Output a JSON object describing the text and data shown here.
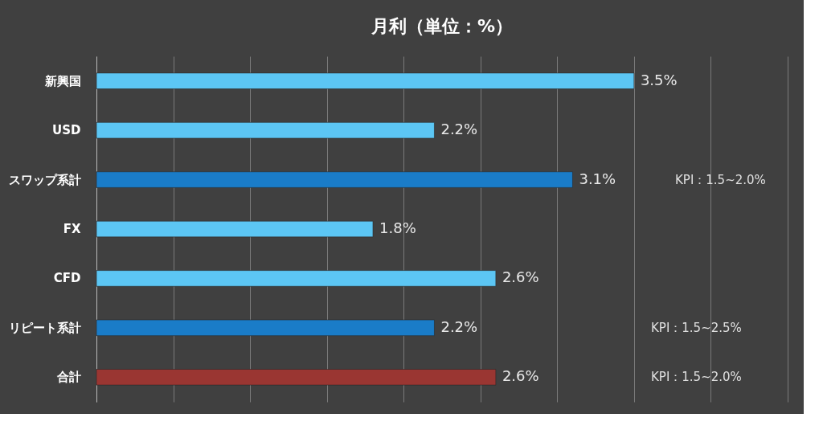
{
  "chart_data": {
    "type": "bar",
    "orientation": "horizontal",
    "title": "月利（単位：%）",
    "categories": [
      "新興国",
      "USD",
      "スワップ系計",
      "FX",
      "CFD",
      "リピート系計",
      "合計"
    ],
    "values": [
      3.5,
      2.2,
      3.1,
      1.8,
      2.6,
      2.2,
      2.6
    ],
    "colors": [
      "#5cc6f4",
      "#5cc6f4",
      "#1a7cc8",
      "#5cc6f4",
      "#5cc6f4",
      "#1a7cc8",
      "#9a3632"
    ],
    "value_labels": [
      "3.5%",
      "2.2%",
      "3.1%",
      "1.8%",
      "2.6%",
      "2.2%",
      "2.6%"
    ],
    "xlim": [
      0,
      4.5
    ],
    "xticks": [
      {
        "value": 0,
        "label": null
      },
      {
        "value": 0.5,
        "label": null
      },
      {
        "value": 1,
        "label": null
      },
      {
        "value": 1.5,
        "label": null
      },
      {
        "value": 2,
        "label": null
      },
      {
        "value": 2.5,
        "label": null
      },
      {
        "value": 3,
        "label": null
      },
      {
        "value": 3.5,
        "label": null
      },
      {
        "value": 4,
        "label": null
      },
      {
        "value": 4.5,
        "label": null
      }
    ],
    "tick_labels": "y",
    "grid": "x",
    "annotations": [
      "KPI：1.5~2.0%",
      "KPI：1.5~2.5%",
      "KPI：1.5~2.0%"
    ]
  }
}
